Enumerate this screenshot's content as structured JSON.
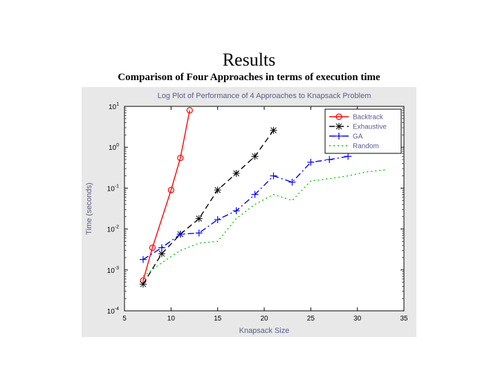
{
  "heading": "Results",
  "subheading": "Comparison of Four Approaches in terms of execution time",
  "chart": {
    "type": "line",
    "background_color": "#e8e8e8",
    "plot_background_color": "#ffffff",
    "axis_color": "#000000",
    "grid_color": "#000000",
    "title": "Log Plot of Performance of 4 Approaches to Knapsack Problem",
    "title_color": "#5a5a8a",
    "title_fontsize": 11,
    "xlabel": "Knapsack Size",
    "ylabel": "Time (seconds)",
    "label_color": "#5a5a8a",
    "label_fontsize": 11,
    "tick_fontsize": 10,
    "xlim": [
      5,
      35
    ],
    "xtick_step": 5,
    "ylim_exp": [
      -4,
      1
    ],
    "series": [
      {
        "name": "Backtrack",
        "color": "#ff0000",
        "dash": "none",
        "marker": "circle",
        "marker_size": 4,
        "x": [
          7,
          8,
          10,
          11,
          12
        ],
        "y": [
          0.00055,
          0.0035,
          0.09,
          0.55,
          8.0
        ]
      },
      {
        "name": "Exhaustive",
        "color": "#000000",
        "dash": "dash",
        "marker": "star",
        "marker_size": 5,
        "x": [
          7,
          9,
          11,
          13,
          15,
          17,
          19,
          21
        ],
        "y": [
          0.00045,
          0.0025,
          0.0075,
          0.018,
          0.09,
          0.23,
          0.6,
          2.6
        ]
      },
      {
        "name": "GA",
        "color": "#0000ff",
        "dash": "dashdot",
        "marker": "plus",
        "marker_size": 5,
        "x": [
          7,
          9,
          11,
          13,
          15,
          17,
          19,
          21,
          23,
          25,
          27,
          29
        ],
        "y": [
          0.0018,
          0.0035,
          0.0075,
          0.008,
          0.017,
          0.028,
          0.07,
          0.2,
          0.14,
          0.43,
          0.5,
          0.6
        ]
      },
      {
        "name": "Random",
        "color": "#00cc00",
        "dash": "dot",
        "marker": "none",
        "marker_size": 0,
        "x": [
          7,
          9,
          11,
          13,
          15,
          17,
          19,
          21,
          23,
          25,
          27,
          29,
          31,
          33
        ],
        "y": [
          0.0007,
          0.0015,
          0.003,
          0.0045,
          0.005,
          0.018,
          0.04,
          0.07,
          0.05,
          0.15,
          0.17,
          0.2,
          0.25,
          0.28
        ]
      }
    ],
    "legend": {
      "position": "upper-right",
      "border_color": "#000000",
      "background": "#ffffff",
      "font_color": "#5a5a8a",
      "fontsize": 10
    }
  }
}
